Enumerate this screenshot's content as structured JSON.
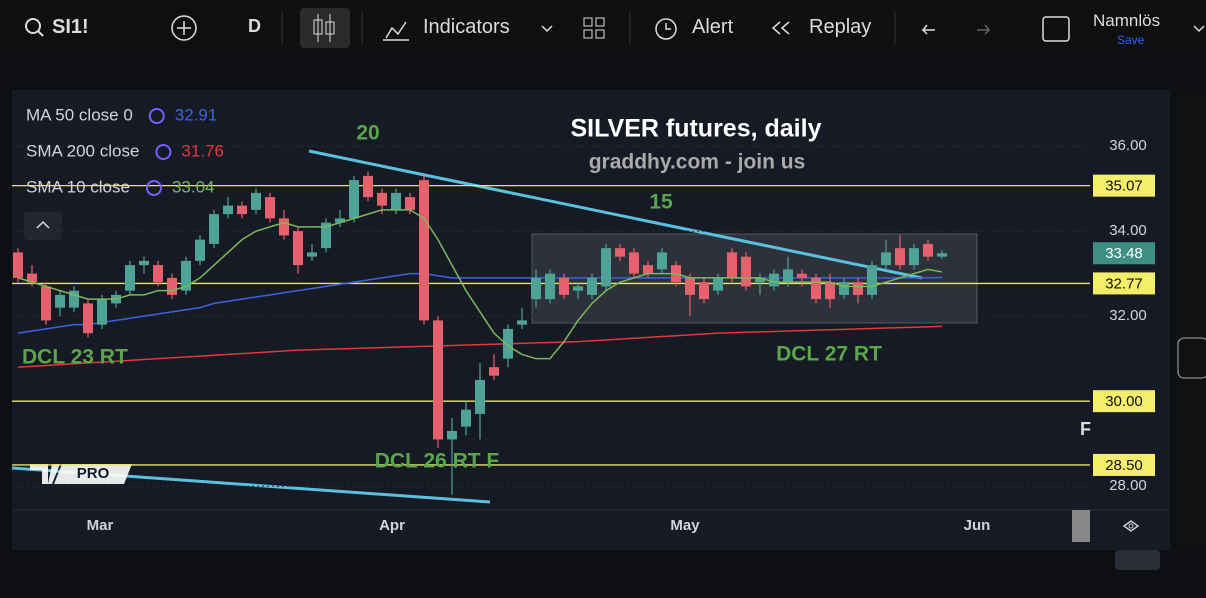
{
  "toolbar": {
    "symbol": "SI1!",
    "interval": "D",
    "indicators": "Indicators",
    "alert": "Alert",
    "replay": "Replay",
    "layout_name": "Namnlös",
    "save": "Save"
  },
  "chart_data": {
    "type": "candlestick",
    "title": "SILVER futures, daily",
    "subtitle": "graddhy.com - join us",
    "annotations": [
      "20",
      "15",
      "DCL 23 RT",
      "DCL 26 RT F",
      "DCL 27 RT"
    ],
    "months": [
      "Mar",
      "Apr",
      "May",
      "Jun"
    ],
    "ylim": [
      27.44,
      37.32
    ],
    "yticks": [
      {
        "value": 36,
        "label": "36.00"
      },
      {
        "value": 34,
        "label": "34.00"
      },
      {
        "value": 32,
        "label": "32.00"
      },
      {
        "value": 28,
        "label": "28.00"
      }
    ],
    "levels": [
      35.07,
      32.77,
      {
        "value": 30,
        "label": "30.00"
      },
      {
        "value": 28.5,
        "label": "28.50"
      }
    ],
    "last_price": 33.48,
    "up_color": "#4fa396",
    "down_color": "#e5626c",
    "candles": [
      [
        33.5,
        33.6,
        32.8,
        32.9
      ],
      [
        33.0,
        33.2,
        32.7,
        32.8
      ],
      [
        32.7,
        32.8,
        31.8,
        31.9
      ],
      [
        32.2,
        32.6,
        32.0,
        32.5
      ],
      [
        32.2,
        32.7,
        32.1,
        32.6
      ],
      [
        32.3,
        32.4,
        31.5,
        31.6
      ],
      [
        31.8,
        32.5,
        31.7,
        32.4
      ],
      [
        32.3,
        32.6,
        32.2,
        32.5
      ],
      [
        32.6,
        33.3,
        32.5,
        33.2
      ],
      [
        33.2,
        33.4,
        33.0,
        33.3
      ],
      [
        33.2,
        33.3,
        32.7,
        32.8
      ],
      [
        32.9,
        33.0,
        32.4,
        32.5
      ],
      [
        32.6,
        33.4,
        32.5,
        33.3
      ],
      [
        33.3,
        33.9,
        33.2,
        33.8
      ],
      [
        33.7,
        34.5,
        33.6,
        34.4
      ],
      [
        34.4,
        34.8,
        34.3,
        34.6
      ],
      [
        34.6,
        34.7,
        34.3,
        34.4
      ],
      [
        34.5,
        35.0,
        34.4,
        34.9
      ],
      [
        34.8,
        34.9,
        34.2,
        34.3
      ],
      [
        34.3,
        34.5,
        33.8,
        33.9
      ],
      [
        34.0,
        34.1,
        33.0,
        33.2
      ],
      [
        33.4,
        33.7,
        33.3,
        33.5
      ],
      [
        33.6,
        34.3,
        33.5,
        34.2
      ],
      [
        34.2,
        34.5,
        34.1,
        34.3
      ],
      [
        34.3,
        35.3,
        34.2,
        35.2
      ],
      [
        35.3,
        35.4,
        34.7,
        34.8
      ],
      [
        34.9,
        35.0,
        34.4,
        34.6
      ],
      [
        34.5,
        35.0,
        34.4,
        34.9
      ],
      [
        34.8,
        34.9,
        34.4,
        34.5
      ],
      [
        35.2,
        35.3,
        31.8,
        31.9
      ],
      [
        31.9,
        32.0,
        28.9,
        29.1
      ],
      [
        29.1,
        29.6,
        27.8,
        29.3
      ],
      [
        29.4,
        30.0,
        29.2,
        29.8
      ],
      [
        29.7,
        30.9,
        29.1,
        30.5
      ],
      [
        30.8,
        31.1,
        30.5,
        30.6
      ],
      [
        31.0,
        31.8,
        30.8,
        31.7
      ],
      [
        31.8,
        32.2,
        31.7,
        31.9
      ],
      [
        32.4,
        33.1,
        32.2,
        32.9
      ],
      [
        32.4,
        33.1,
        32.3,
        33.0
      ],
      [
        32.9,
        33.0,
        32.4,
        32.5
      ],
      [
        32.6,
        32.8,
        32.4,
        32.7
      ],
      [
        32.5,
        33.0,
        32.4,
        32.9
      ],
      [
        32.7,
        33.7,
        32.6,
        33.6
      ],
      [
        33.6,
        33.7,
        33.3,
        33.4
      ],
      [
        33.5,
        33.6,
        32.9,
        33.0
      ],
      [
        33.2,
        33.3,
        32.9,
        33.0
      ],
      [
        33.1,
        33.6,
        33.0,
        33.5
      ],
      [
        33.2,
        33.3,
        32.7,
        32.8
      ],
      [
        32.9,
        33.0,
        32.0,
        32.5
      ],
      [
        32.8,
        32.9,
        32.3,
        32.4
      ],
      [
        32.6,
        33.0,
        32.5,
        32.9
      ],
      [
        33.5,
        33.6,
        32.8,
        32.9
      ],
      [
        33.4,
        33.5,
        32.6,
        32.7
      ],
      [
        32.8,
        33.0,
        32.5,
        32.9
      ],
      [
        32.7,
        33.1,
        32.6,
        33.0
      ],
      [
        32.8,
        33.4,
        32.7,
        33.1
      ],
      [
        33.0,
        33.1,
        32.7,
        32.9
      ],
      [
        32.9,
        33.0,
        32.3,
        32.4
      ],
      [
        32.8,
        33.0,
        32.2,
        32.4
      ],
      [
        32.5,
        32.9,
        32.4,
        32.8
      ],
      [
        32.8,
        32.9,
        32.3,
        32.5
      ],
      [
        32.5,
        33.3,
        32.4,
        33.2
      ],
      [
        33.2,
        33.8,
        33.1,
        33.5
      ],
      [
        33.6,
        33.9,
        33.1,
        33.2
      ],
      [
        33.2,
        33.7,
        33.1,
        33.6
      ],
      [
        33.7,
        33.8,
        33.3,
        33.4
      ],
      [
        33.4,
        33.55,
        33.35,
        33.48
      ]
    ],
    "series": [
      {
        "name": "MA 50 close 0",
        "color": "#3d63e0",
        "last": 32.91,
        "values": [
          31.6,
          31.65,
          31.7,
          31.75,
          31.8,
          31.8,
          31.85,
          31.9,
          31.95,
          32.0,
          32.05,
          32.1,
          32.15,
          32.2,
          32.3,
          32.35,
          32.4,
          32.45,
          32.5,
          32.55,
          32.6,
          32.65,
          32.7,
          32.75,
          32.8,
          32.85,
          32.9,
          32.95,
          33.0,
          33.0,
          32.95,
          32.9,
          32.9,
          32.9,
          32.9,
          32.9,
          32.9,
          32.9,
          32.9,
          32.9,
          32.9,
          32.9,
          32.9,
          32.9,
          32.9,
          32.9,
          32.9,
          32.9,
          32.9,
          32.9,
          32.9,
          32.9,
          32.9,
          32.9,
          32.9,
          32.9,
          32.9,
          32.9,
          32.9,
          32.9,
          32.9,
          32.9,
          32.9,
          32.9,
          32.9,
          32.9,
          32.91
        ]
      },
      {
        "name": "SMA 200 close",
        "color": "#e0393e",
        "last": 31.76,
        "values": [
          30.8,
          30.82,
          30.84,
          30.86,
          30.88,
          30.9,
          30.92,
          30.94,
          30.96,
          30.98,
          31.0,
          31.02,
          31.04,
          31.06,
          31.08,
          31.1,
          31.12,
          31.14,
          31.16,
          31.18,
          31.2,
          31.21,
          31.22,
          31.23,
          31.24,
          31.25,
          31.26,
          31.27,
          31.28,
          31.29,
          31.3,
          31.31,
          31.32,
          31.33,
          31.34,
          31.35,
          31.36,
          31.37,
          31.38,
          31.39,
          31.4,
          31.42,
          31.44,
          31.46,
          31.48,
          31.5,
          31.52,
          31.54,
          31.56,
          31.58,
          31.6,
          31.61,
          31.62,
          31.63,
          31.64,
          31.65,
          31.66,
          31.67,
          31.68,
          31.69,
          31.7,
          31.71,
          31.72,
          31.73,
          31.74,
          31.75,
          31.76
        ]
      },
      {
        "name": "SMA 10 close",
        "color": "#7cb85a",
        "last": 33.04,
        "values": [
          32.9,
          32.8,
          32.7,
          32.6,
          32.5,
          32.4,
          32.4,
          32.4,
          32.5,
          32.5,
          32.6,
          32.6,
          32.7,
          32.9,
          33.2,
          33.5,
          33.8,
          34.0,
          34.1,
          34.2,
          34.1,
          34.1,
          34.1,
          34.2,
          34.3,
          34.4,
          34.5,
          34.5,
          34.5,
          34.3,
          33.8,
          33.2,
          32.6,
          32.1,
          31.6,
          31.3,
          31.1,
          31.0,
          31.0,
          31.4,
          31.9,
          32.3,
          32.6,
          32.8,
          32.9,
          33.0,
          33.0,
          33.0,
          32.9,
          32.9,
          32.9,
          32.9,
          32.9,
          32.9,
          32.8,
          32.8,
          32.8,
          32.8,
          32.8,
          32.7,
          32.7,
          32.7,
          32.8,
          32.9,
          33.0,
          33.1,
          33.04
        ]
      }
    ]
  }
}
